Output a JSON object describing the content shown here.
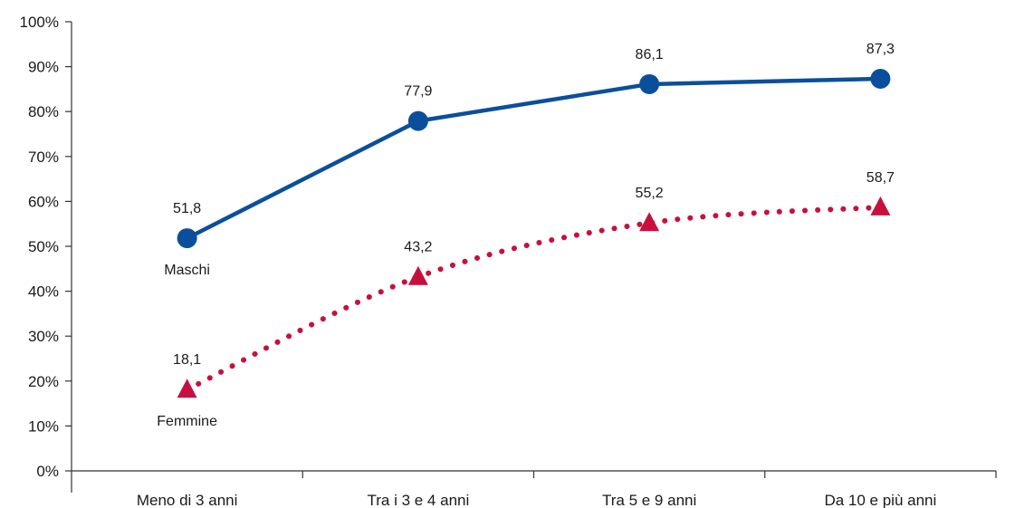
{
  "chart_data": {
    "type": "line",
    "title": "",
    "xlabel": "",
    "ylabel": "",
    "ylim": [
      0,
      100
    ],
    "y_ticks": [
      "0%",
      "10%",
      "20%",
      "30%",
      "40%",
      "50%",
      "60%",
      "70%",
      "80%",
      "90%",
      "100%"
    ],
    "categories": [
      "Meno di 3 anni",
      "Tra i 3 e 4 anni",
      "Tra 5 e 9 anni",
      "Da 10 e più anni"
    ],
    "grid": false,
    "series": [
      {
        "name": "Maschi",
        "values": [
          51.8,
          77.9,
          86.1,
          87.3
        ],
        "labels": [
          "51,8",
          "77,9",
          "86,1",
          "87,3"
        ],
        "color": "#0b4f9c",
        "marker": "circle",
        "line_style": "solid"
      },
      {
        "name": "Femmine",
        "values": [
          18.1,
          43.2,
          55.2,
          58.7
        ],
        "labels": [
          "18,1",
          "43,2",
          "55,2",
          "58,7"
        ],
        "color": "#c8103e",
        "marker": "triangle",
        "line_style": "dotted"
      }
    ]
  }
}
